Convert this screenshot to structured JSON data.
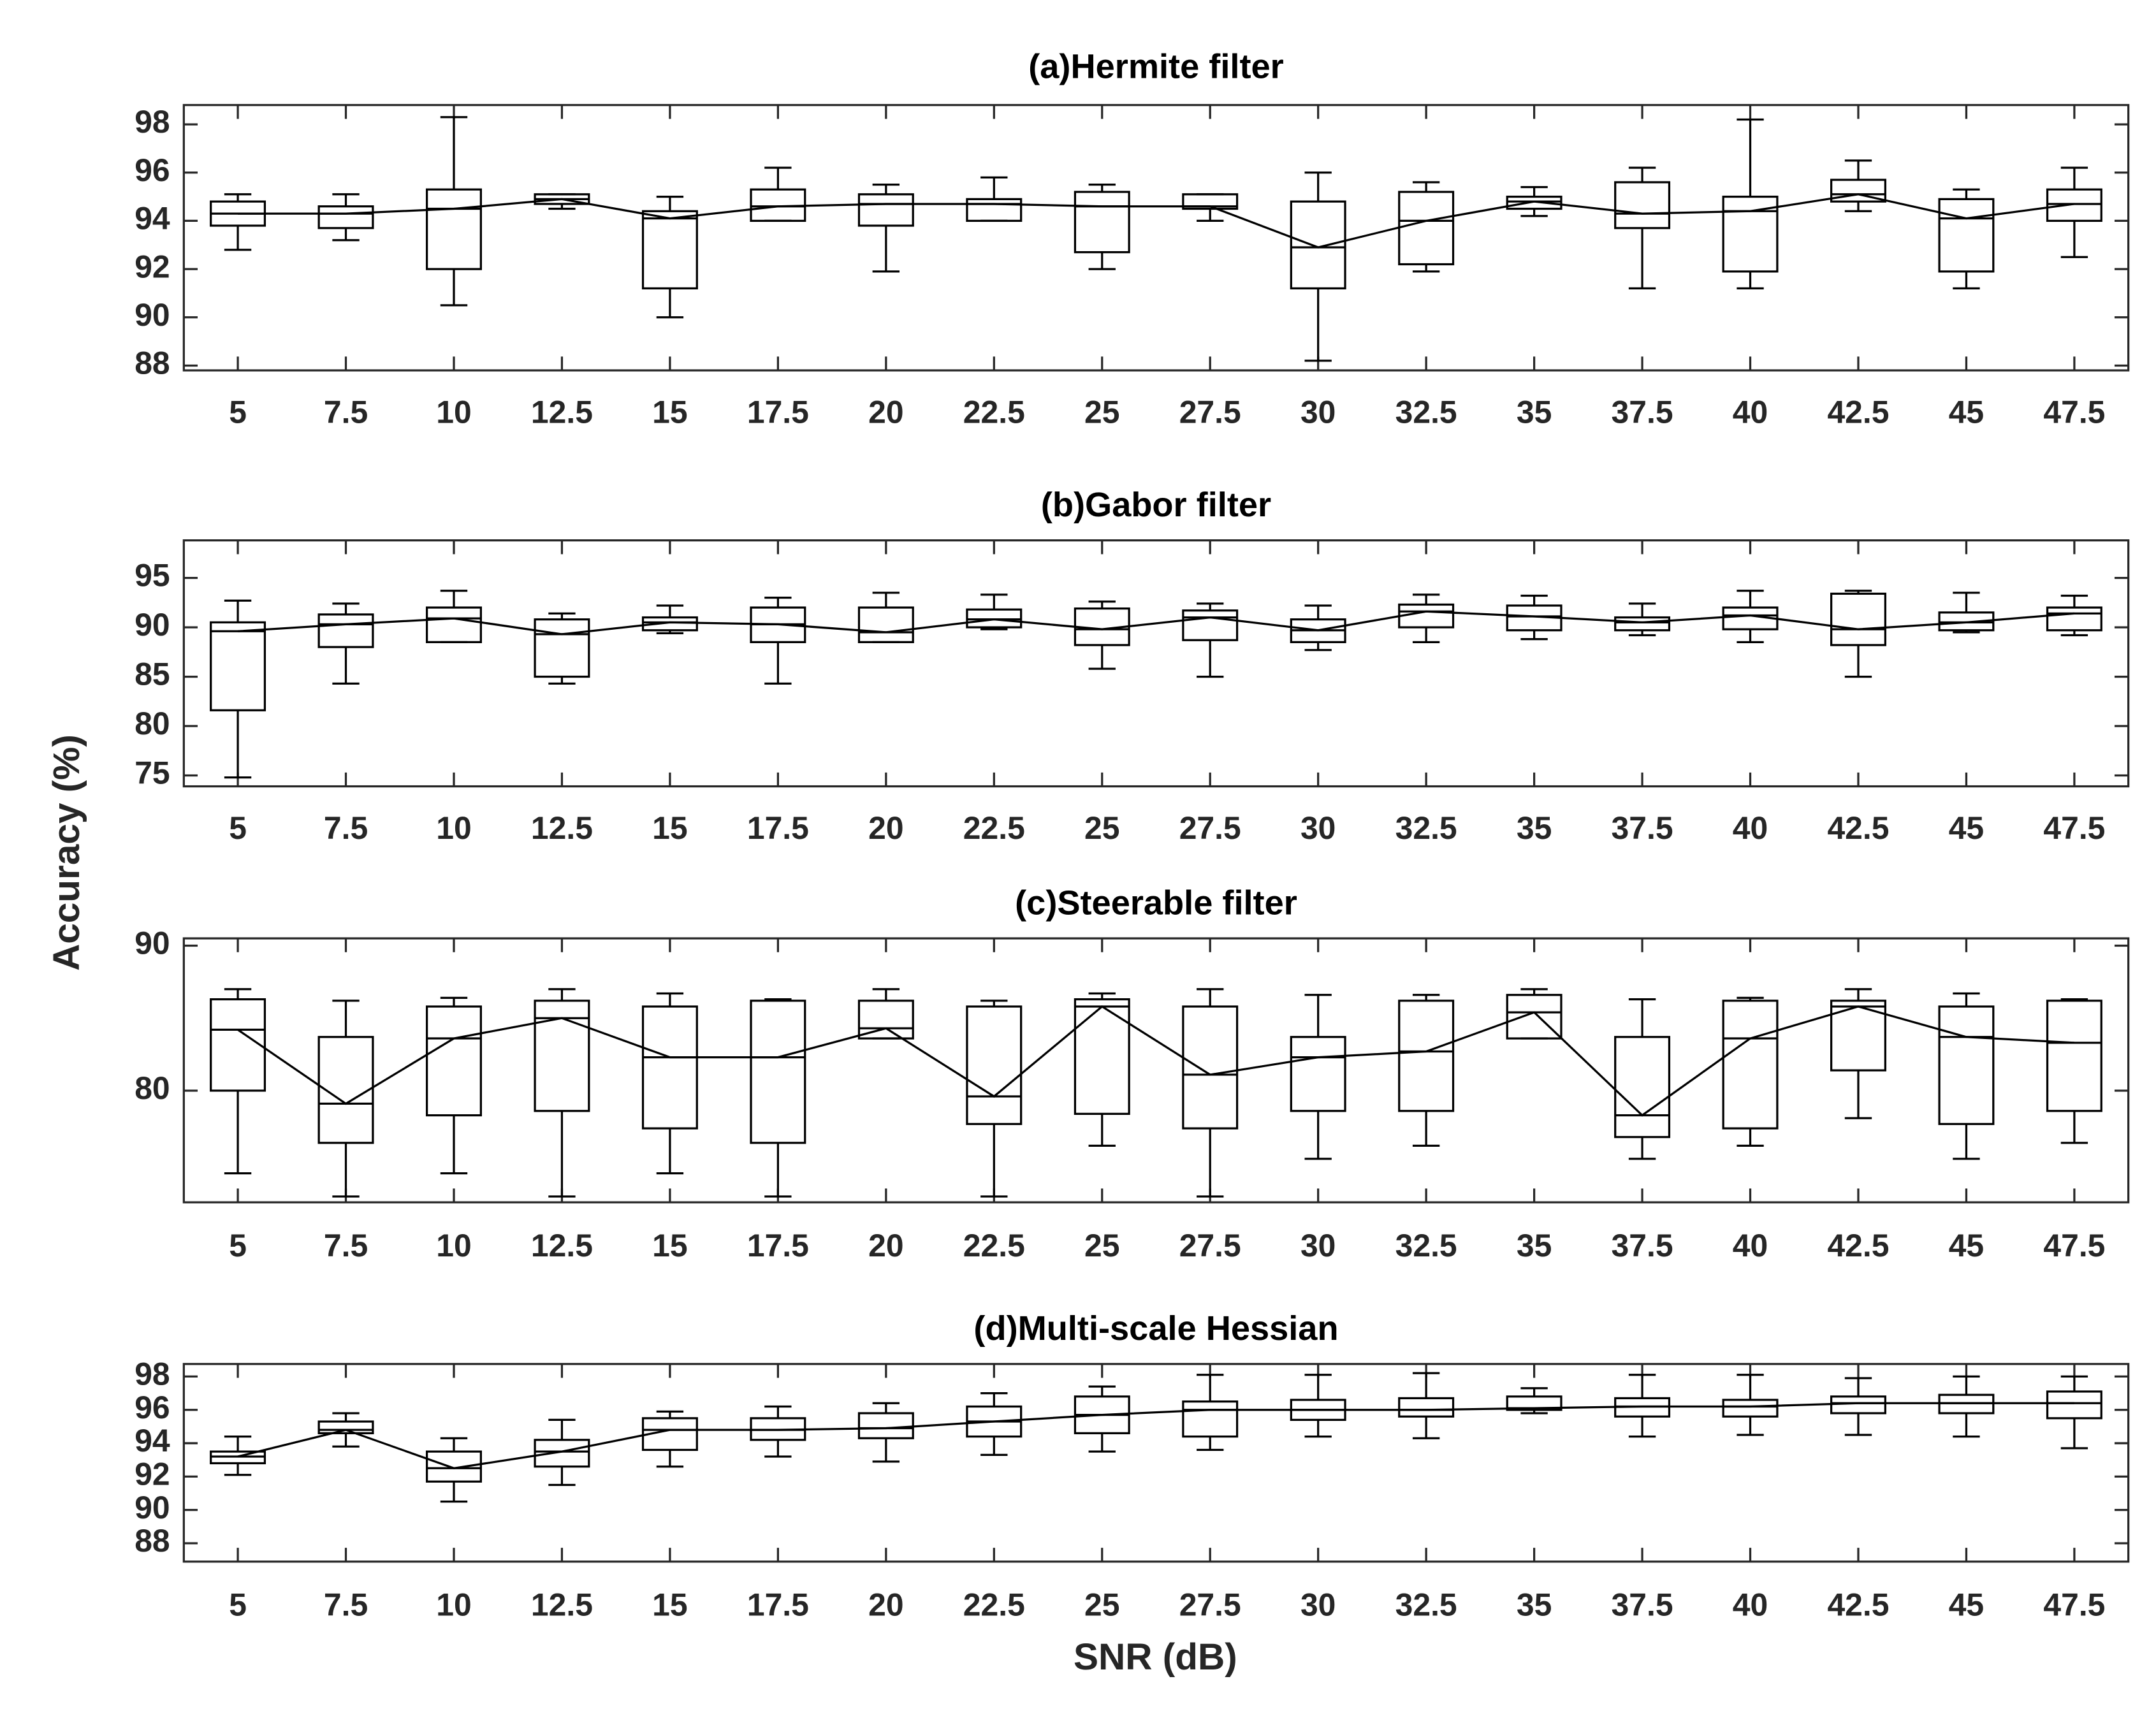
{
  "ylabel": "Accuracy (%)",
  "xlabel": "SNR (dB)",
  "chart_data": [
    {
      "type": "box",
      "title": "(a)Hermite filter",
      "categories": [
        "5",
        "7.5",
        "10",
        "12.5",
        "15",
        "17.5",
        "20",
        "22.5",
        "25",
        "27.5",
        "30",
        "32.5",
        "35",
        "37.5",
        "40",
        "42.5",
        "45",
        "47.5"
      ],
      "low": [
        92.8,
        93.2,
        90.5,
        94.5,
        90.0,
        94.0,
        91.9,
        94.0,
        92.0,
        94.0,
        88.2,
        91.9,
        94.2,
        91.2,
        91.2,
        94.4,
        91.2,
        92.5
      ],
      "q1": [
        93.8,
        93.7,
        92.0,
        94.7,
        91.2,
        94.0,
        93.8,
        94.0,
        92.7,
        94.5,
        91.2,
        92.2,
        94.5,
        93.7,
        91.9,
        94.8,
        91.9,
        94.0
      ],
      "median": [
        94.3,
        94.3,
        94.5,
        94.9,
        94.1,
        94.6,
        94.7,
        94.7,
        94.6,
        94.6,
        92.9,
        94.0,
        94.8,
        94.3,
        94.4,
        95.1,
        94.1,
        94.7
      ],
      "q3": [
        94.8,
        94.6,
        95.3,
        95.1,
        94.4,
        95.3,
        95.1,
        94.9,
        95.2,
        95.1,
        94.8,
        95.2,
        95.0,
        95.6,
        95.0,
        95.7,
        94.9,
        95.3
      ],
      "high": [
        95.1,
        95.1,
        98.3,
        95.1,
        95.0,
        96.2,
        95.5,
        95.8,
        95.5,
        95.1,
        96.0,
        95.6,
        95.4,
        96.2,
        98.2,
        96.5,
        95.3,
        96.2
      ],
      "ylim": [
        87.8,
        98.8
      ],
      "yticks": [
        88,
        90,
        92,
        94,
        96,
        98
      ],
      "color": "#000000"
    },
    {
      "type": "box",
      "title": "(b)Gabor filter",
      "categories": [
        "5",
        "7.5",
        "10",
        "12.5",
        "15",
        "17.5",
        "20",
        "22.5",
        "25",
        "27.5",
        "30",
        "32.5",
        "35",
        "37.5",
        "40",
        "42.5",
        "45",
        "47.5"
      ],
      "low": [
        74.8,
        84.3,
        88.5,
        84.3,
        89.4,
        84.3,
        88.5,
        89.8,
        85.8,
        85.0,
        87.7,
        88.5,
        88.8,
        89.2,
        88.5,
        85.0,
        89.5,
        89.2
      ],
      "q1": [
        81.6,
        88.0,
        88.5,
        85.0,
        89.7,
        88.5,
        88.5,
        90.0,
        88.2,
        88.7,
        88.5,
        90.0,
        89.7,
        89.7,
        89.8,
        88.2,
        89.7,
        89.7
      ],
      "median": [
        89.6,
        90.3,
        90.9,
        89.3,
        90.5,
        90.3,
        89.5,
        90.8,
        89.8,
        91.0,
        89.7,
        91.6,
        91.1,
        90.5,
        91.2,
        89.8,
        90.5,
        91.4
      ],
      "q3": [
        90.5,
        91.3,
        92.0,
        90.8,
        91.0,
        92.0,
        92.0,
        91.8,
        91.9,
        91.7,
        90.8,
        92.3,
        92.2,
        91.0,
        92.0,
        93.4,
        91.5,
        92.0
      ],
      "high": [
        92.7,
        92.4,
        93.7,
        91.4,
        92.2,
        93.0,
        93.5,
        93.3,
        92.6,
        92.4,
        92.2,
        93.3,
        93.2,
        92.4,
        93.7,
        93.7,
        93.5,
        93.2
      ],
      "ylim": [
        73.9,
        98.8
      ],
      "yticks": [
        75,
        80,
        85,
        90,
        95
      ],
      "color": "#000000"
    },
    {
      "type": "box",
      "title": "(c)Steerable filter",
      "categories": [
        "5",
        "7.5",
        "10",
        "12.5",
        "15",
        "17.5",
        "20",
        "22.5",
        "25",
        "27.5",
        "30",
        "32.5",
        "35",
        "37.5",
        "40",
        "42.5",
        "45",
        "47.5"
      ],
      "low": [
        74.3,
        72.7,
        74.3,
        72.7,
        74.3,
        72.7,
        83.6,
        72.7,
        76.2,
        72.7,
        75.3,
        76.2,
        83.6,
        75.3,
        76.2,
        78.1,
        75.3,
        76.4
      ],
      "q1": [
        80.0,
        76.4,
        78.3,
        78.6,
        77.4,
        76.4,
        83.6,
        77.7,
        78.4,
        77.4,
        78.6,
        78.6,
        83.6,
        76.8,
        77.4,
        81.4,
        77.7,
        78.6
      ],
      "median": [
        84.2,
        79.1,
        83.6,
        85.0,
        82.3,
        82.3,
        84.3,
        79.6,
        85.8,
        81.1,
        82.3,
        82.7,
        85.4,
        78.3,
        83.6,
        85.8,
        83.7,
        83.3
      ],
      "q3": [
        86.3,
        83.7,
        85.8,
        86.2,
        85.8,
        86.2,
        86.2,
        85.8,
        86.3,
        85.8,
        83.7,
        86.2,
        86.6,
        83.7,
        86.2,
        86.2,
        85.8,
        86.2
      ],
      "high": [
        87.0,
        86.2,
        86.4,
        87.0,
        86.7,
        86.3,
        87.0,
        86.2,
        86.7,
        87.0,
        86.6,
        86.6,
        87.0,
        86.3,
        86.4,
        87.0,
        86.7,
        86.3
      ],
      "ylim": [
        72.3,
        90.5
      ],
      "yticks": [
        80,
        90
      ],
      "color": "#000000"
    },
    {
      "type": "box",
      "title": "(d)Multi-scale Hessian",
      "categories": [
        "5",
        "7.5",
        "10",
        "12.5",
        "15",
        "17.5",
        "20",
        "22.5",
        "25",
        "27.5",
        "30",
        "32.5",
        "35",
        "37.5",
        "40",
        "42.5",
        "45",
        "47.5"
      ],
      "low": [
        92.1,
        93.8,
        90.5,
        91.5,
        92.6,
        93.2,
        92.9,
        93.3,
        93.5,
        93.6,
        94.4,
        94.3,
        95.8,
        94.4,
        94.5,
        94.5,
        94.4,
        93.7
      ],
      "q1": [
        92.8,
        94.6,
        91.7,
        92.6,
        93.6,
        94.2,
        94.3,
        94.4,
        94.6,
        94.4,
        95.4,
        95.6,
        96.0,
        95.6,
        95.6,
        95.8,
        95.8,
        95.5
      ],
      "median": [
        93.2,
        94.8,
        92.5,
        93.5,
        94.8,
        94.8,
        94.9,
        95.3,
        95.7,
        96.0,
        96.0,
        96.0,
        96.1,
        96.2,
        96.2,
        96.4,
        96.4,
        96.4
      ],
      "q3": [
        93.5,
        95.3,
        93.5,
        94.2,
        95.5,
        95.5,
        95.8,
        96.2,
        96.8,
        96.5,
        96.6,
        96.7,
        96.8,
        96.7,
        96.6,
        96.8,
        96.9,
        97.1
      ],
      "high": [
        94.4,
        95.8,
        94.3,
        95.4,
        95.9,
        96.2,
        96.4,
        97.0,
        97.4,
        98.1,
        98.1,
        98.2,
        97.3,
        98.1,
        98.1,
        97.9,
        98.0,
        98.0
      ],
      "ylim": [
        86.9,
        98.75
      ],
      "yticks": [
        88,
        90,
        92,
        94,
        96,
        98
      ],
      "color": "#000000"
    }
  ]
}
